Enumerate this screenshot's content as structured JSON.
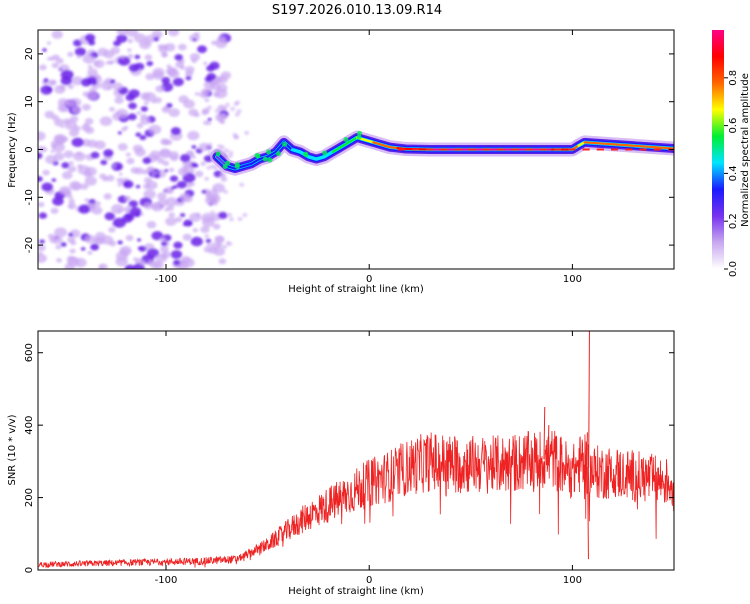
{
  "title": "S197.2026.010.13.09.R14",
  "chart_data": [
    {
      "type": "heatmap",
      "xlabel": "Height of straight line (km)",
      "ylabel": "Frequency (Hz)",
      "xlim": [
        -163,
        150
      ],
      "ylim": [
        -25,
        25
      ],
      "xticks": [
        -100,
        0,
        100
      ],
      "xtick_labels": [
        "-100",
        "0",
        "100"
      ],
      "yticks": [
        -20,
        -10,
        0,
        10,
        20
      ],
      "ytick_labels": [
        "-20",
        "-10",
        "0",
        "10",
        "20"
      ],
      "noise_region_x": [
        -163,
        -70
      ],
      "colorbar": {
        "label": "Normalized spectral amplitude",
        "range": [
          0,
          1
        ],
        "ticks": [
          0,
          0.2,
          0.4,
          0.6,
          0.8
        ],
        "tick_labels": [
          "0.0",
          "0.2",
          "0.4",
          "0.6",
          "0.8"
        ],
        "colors": [
          "#ffffff",
          "#c8a8f0",
          "#7733ee",
          "#1a1aff",
          "#00e5ff",
          "#00ee33",
          "#ffff00",
          "#ff6600",
          "#ff0000",
          "#ff0088"
        ]
      },
      "ridge": {
        "x": [
          -75,
          -70,
          -66,
          -62,
          -58,
          -54,
          -50,
          -46,
          -42,
          -38,
          -34,
          -30,
          -26,
          -22,
          -18,
          -14,
          -10,
          -6,
          -2,
          2,
          6,
          10,
          14,
          18,
          30,
          50,
          70,
          80,
          90,
          95,
          100,
          103,
          106,
          150
        ],
        "y": [
          -1.5,
          -3.5,
          -4.0,
          -3.5,
          -3.0,
          -2.0,
          -1.5,
          -0.5,
          1.5,
          0.0,
          -0.5,
          -1.5,
          -2.0,
          -1.5,
          -0.5,
          0.5,
          1.5,
          2.5,
          2.0,
          1.5,
          1.0,
          0.5,
          0.3,
          0.1,
          0,
          0,
          0,
          0,
          0,
          0,
          0,
          0.8,
          1.5,
          0.2
        ],
        "amplitude": [
          0.15,
          0.25,
          0.25,
          0.3,
          0.3,
          0.3,
          0.35,
          0.3,
          0.3,
          0.35,
          0.35,
          0.4,
          0.35,
          0.4,
          0.45,
          0.5,
          0.5,
          0.55,
          0.6,
          0.65,
          0.7,
          0.75,
          0.8,
          0.85,
          0.9,
          0.9,
          0.9,
          0.9,
          0.9,
          0.85,
          0.85,
          0.7,
          0.6,
          0.9
        ]
      }
    },
    {
      "type": "line",
      "xlabel": "Height of straight line (km)",
      "ylabel": "SNR (10 * v/v)",
      "xlim": [
        -163,
        150
      ],
      "ylim": [
        0,
        660
      ],
      "xticks": [
        -100,
        0,
        100
      ],
      "xtick_labels": [
        "-100",
        "0",
        "100"
      ],
      "yticks": [
        0,
        200,
        400,
        600
      ],
      "ytick_labels": [
        "0",
        "200",
        "400",
        "600"
      ],
      "color": "#ee2222",
      "profile": {
        "x": [
          -163,
          -120,
          -80,
          -65,
          -50,
          -40,
          -30,
          -20,
          -10,
          0,
          10,
          20,
          30,
          40,
          60,
          80,
          90,
          100,
          105,
          110,
          120,
          130,
          140,
          150
        ],
        "y": [
          15,
          20,
          25,
          30,
          70,
          110,
          150,
          180,
          210,
          240,
          260,
          285,
          300,
          295,
          290,
          300,
          310,
          270,
          300,
          270,
          270,
          260,
          250,
          240
        ]
      },
      "spikes": [
        {
          "x": 86,
          "y": 450
        },
        {
          "x": 88,
          "y": 400
        },
        {
          "x": 107,
          "y": 380
        },
        {
          "x": 108,
          "y": 660
        },
        {
          "x": 107.5,
          "y": 30
        }
      ]
    }
  ]
}
